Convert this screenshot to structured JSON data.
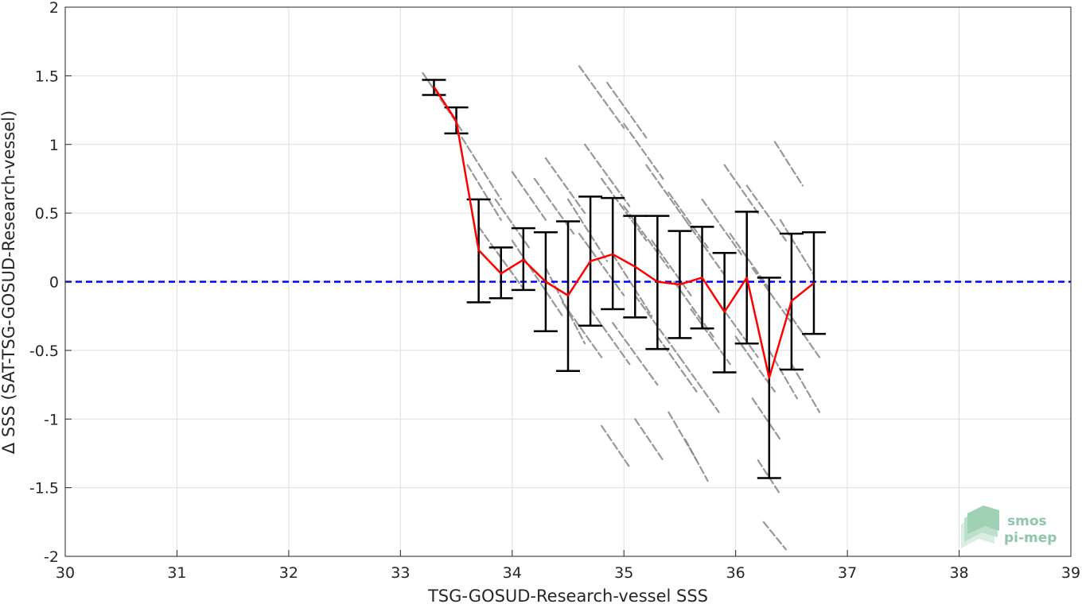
{
  "chart_data": {
    "type": "scatter",
    "title": "",
    "xlabel": "TSG-GOSUD-Research-vessel SSS",
    "ylabel": "Δ SSS (SAT-TSG-GOSUD-Research-vessel)",
    "xlim": [
      30,
      39
    ],
    "ylim": [
      -2,
      2
    ],
    "xticks": [
      30,
      31,
      32,
      33,
      34,
      35,
      36,
      37,
      38,
      39
    ],
    "yticks": [
      -2,
      -1.5,
      -1,
      -0.5,
      0,
      0.5,
      1,
      1.5,
      2
    ],
    "xtick_labels": [
      "30",
      "31",
      "32",
      "33",
      "34",
      "35",
      "36",
      "37",
      "38",
      "39"
    ],
    "ytick_labels": [
      "-2",
      "-1.5",
      "-1",
      "-0.5",
      "0",
      "0.5",
      "1",
      "1.5",
      "2"
    ],
    "grid": true,
    "series": [
      {
        "kind": "reference_line",
        "style": "dashed",
        "color": "#0000ff",
        "y": 0
      },
      {
        "kind": "binned_mean_with_error_bars",
        "color": "#ff0000",
        "errorbar_color": "#000000",
        "x": [
          33.3,
          33.5,
          33.7,
          33.9,
          34.1,
          34.3,
          34.5,
          34.7,
          34.9,
          35.1,
          35.3,
          35.5,
          35.7,
          35.9,
          36.1,
          36.3,
          36.5,
          36.7
        ],
        "y": [
          1.42,
          1.17,
          0.23,
          0.06,
          0.16,
          0.0,
          -0.1,
          0.15,
          0.2,
          0.11,
          0.0,
          -0.02,
          0.03,
          -0.22,
          0.03,
          -0.7,
          -0.14,
          -0.01
        ],
        "lower": [
          1.36,
          1.08,
          -0.15,
          -0.12,
          -0.06,
          -0.36,
          -0.65,
          -0.32,
          -0.2,
          -0.26,
          -0.49,
          -0.41,
          -0.34,
          -0.66,
          -0.45,
          -1.43,
          -0.64,
          -0.38
        ],
        "upper": [
          1.47,
          1.27,
          0.6,
          0.25,
          0.39,
          0.36,
          0.44,
          0.62,
          0.61,
          0.48,
          0.48,
          0.37,
          0.4,
          0.21,
          0.51,
          0.03,
          0.35,
          0.36
        ]
      },
      {
        "kind": "scatter_segments",
        "color": "#8c8c8c",
        "note": "matchup points forming short diagonal streaks",
        "segments": [
          [
            33.2,
            1.52,
            33.55,
            1.1
          ],
          [
            33.55,
            1.05,
            33.9,
            0.6
          ],
          [
            33.6,
            0.85,
            33.9,
            0.45
          ],
          [
            33.7,
            0.4,
            34.1,
            -0.05
          ],
          [
            33.85,
            0.6,
            34.15,
            0.25
          ],
          [
            34.0,
            0.8,
            34.3,
            0.45
          ],
          [
            34.0,
            0.3,
            34.45,
            -0.25
          ],
          [
            34.2,
            0.75,
            34.55,
            0.35
          ],
          [
            34.3,
            0.1,
            34.65,
            -0.45
          ],
          [
            34.3,
            0.9,
            34.65,
            0.5
          ],
          [
            34.5,
            0.6,
            34.85,
            0.15
          ],
          [
            34.45,
            -0.15,
            34.8,
            -0.55
          ],
          [
            34.6,
            1.57,
            35.0,
            1.12
          ],
          [
            34.6,
            0.35,
            35.0,
            -0.1
          ],
          [
            34.65,
            1.0,
            35.05,
            0.55
          ],
          [
            34.7,
            -0.2,
            35.05,
            -0.6
          ],
          [
            34.8,
            0.75,
            35.2,
            0.3
          ],
          [
            34.85,
            1.45,
            35.2,
            1.05
          ],
          [
            34.9,
            0.2,
            35.25,
            -0.25
          ],
          [
            34.9,
            -0.3,
            35.3,
            -0.75
          ],
          [
            35.0,
            1.15,
            35.35,
            0.75
          ],
          [
            35.0,
            0.55,
            35.4,
            0.1
          ],
          [
            35.1,
            -0.1,
            35.5,
            -0.55
          ],
          [
            35.2,
            0.85,
            35.55,
            0.45
          ],
          [
            35.25,
            0.3,
            35.6,
            -0.1
          ],
          [
            35.3,
            -0.4,
            35.65,
            -0.8
          ],
          [
            35.4,
            0.65,
            35.75,
            0.25
          ],
          [
            35.45,
            0.0,
            35.8,
            -0.4
          ],
          [
            35.5,
            -0.55,
            35.85,
            -0.95
          ],
          [
            35.55,
            0.45,
            35.9,
            0.05
          ],
          [
            35.6,
            -0.2,
            35.95,
            -0.6
          ],
          [
            35.7,
            0.6,
            36.05,
            0.2
          ],
          [
            35.8,
            -0.1,
            36.2,
            -0.55
          ],
          [
            35.9,
            0.85,
            36.2,
            0.5
          ],
          [
            35.95,
            0.35,
            36.3,
            -0.05
          ],
          [
            36.0,
            -0.4,
            36.35,
            -0.8
          ],
          [
            36.1,
            0.7,
            36.45,
            0.3
          ],
          [
            36.15,
            0.1,
            36.5,
            -0.3
          ],
          [
            36.3,
            -0.5,
            36.55,
            -0.85
          ],
          [
            36.35,
            1.02,
            36.6,
            0.7
          ],
          [
            36.4,
            0.45,
            36.7,
            0.05
          ],
          [
            36.45,
            -0.2,
            36.75,
            -0.55
          ],
          [
            36.5,
            -0.6,
            36.75,
            -0.95
          ],
          [
            34.8,
            -1.05,
            35.05,
            -1.35
          ],
          [
            35.1,
            -1.0,
            35.35,
            -1.3
          ],
          [
            35.4,
            -0.95,
            35.65,
            -1.3
          ],
          [
            35.55,
            -1.15,
            35.75,
            -1.45
          ],
          [
            36.15,
            -0.85,
            36.4,
            -1.15
          ],
          [
            36.2,
            -1.3,
            36.4,
            -1.55
          ],
          [
            36.25,
            -1.75,
            36.45,
            -1.95
          ]
        ]
      }
    ]
  },
  "logo": {
    "line1": "smos",
    "line2": "pi-mep",
    "color": "#8fc5a9"
  }
}
